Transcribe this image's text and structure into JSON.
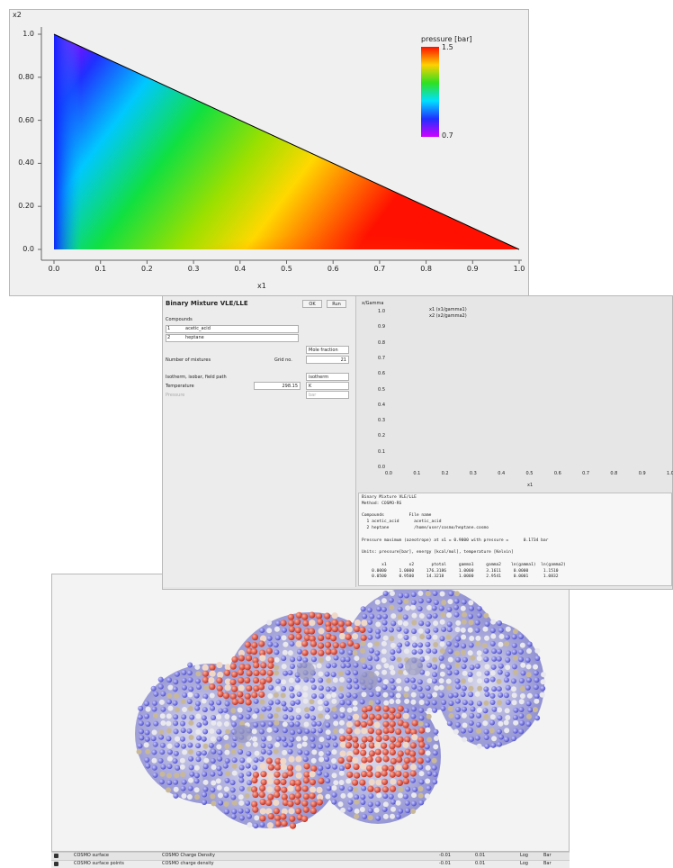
{
  "pressure_plot": {
    "y_axis_label": "x2",
    "x_axis_label": "x1",
    "yticks": [
      "1.0",
      "0.80",
      "0.60",
      "0.40",
      "0.20",
      "0.0"
    ],
    "xticks": [
      "0.0",
      "0.1",
      "0.2",
      "0.3",
      "0.4",
      "0.5",
      "0.6",
      "0.7",
      "0.8",
      "0.9",
      "1.0"
    ],
    "colorbar": {
      "title": "pressure [bar]",
      "max_label": "1.5",
      "min_label": "0.7"
    }
  },
  "vle_window": {
    "panel_title": "Binary Mixture VLE/LLE",
    "buttons": [
      "OK",
      "Run"
    ],
    "compounds_label": "Compounds",
    "compounds": [
      {
        "index": "1",
        "name": "acetic_acid"
      },
      {
        "index": "2",
        "name": "heptane"
      }
    ],
    "fraction_mode": "Mole fraction",
    "points_label": "Number of mixtures",
    "points_unit": "Grid no.",
    "points_value": "21",
    "path_label": "Isotherm, isobar, field path",
    "path_value": "isotherm",
    "temperature_label": "Temperature",
    "temperature_value": "298.15",
    "temperature_unit": "K",
    "pressure_label": "Pressure",
    "pressure_unit": "bar",
    "plot": {
      "title": "x/Gamma",
      "legend": [
        "x1 (x1/gamma1)",
        "x2 (x2/gamma2)"
      ],
      "yticks": [
        "1.0",
        "0.9",
        "0.8",
        "0.7",
        "0.6",
        "0.5",
        "0.4",
        "0.3",
        "0.2",
        "0.1",
        "0.0"
      ],
      "xticks": [
        "0.0",
        "0.1",
        "0.2",
        "0.3",
        "0.4",
        "0.5",
        "0.6",
        "0.7",
        "0.8",
        "0.9",
        "1.0"
      ],
      "x_axis_label": "x1"
    },
    "output": [
      "Binary Mixture VLE/LLE",
      "Method: COSMO-RS",
      "",
      "Compounds          File name",
      "  1 acetic_acid      acetic_acid",
      "  2 heptane          /home/user/cosmo/heptane.cosmo",
      "",
      "Pressure maximum (azeotrope) at x1 = 0.9000 with pressure =      0.1734 bar",
      "",
      "Units: pressure[bar], energy [kcal/mol], temperature [Kelvin]",
      "",
      "        x1         x2       ptotal     gamma1     gamma2    ln(gamma1)  ln(gamma2)",
      "    0.0000     1.0000     176.3186     1.0000     3.1611     0.0000      1.1510",
      "    0.0500     0.9500     14.3218      1.0000     2.9541     0.0001      1.0832"
    ]
  },
  "surface_window": {
    "rows": [
      {
        "object": "COSMO surface",
        "property": "COSMO Charge Density",
        "min": "-0.01",
        "max": "0.01",
        "log": "Log",
        "bar": "Bar"
      },
      {
        "object": "COSMO surface points",
        "property": "COSMO charge density",
        "min": "-0.01",
        "max": "0.01",
        "log": "Log",
        "bar": "Bar"
      }
    ]
  }
}
